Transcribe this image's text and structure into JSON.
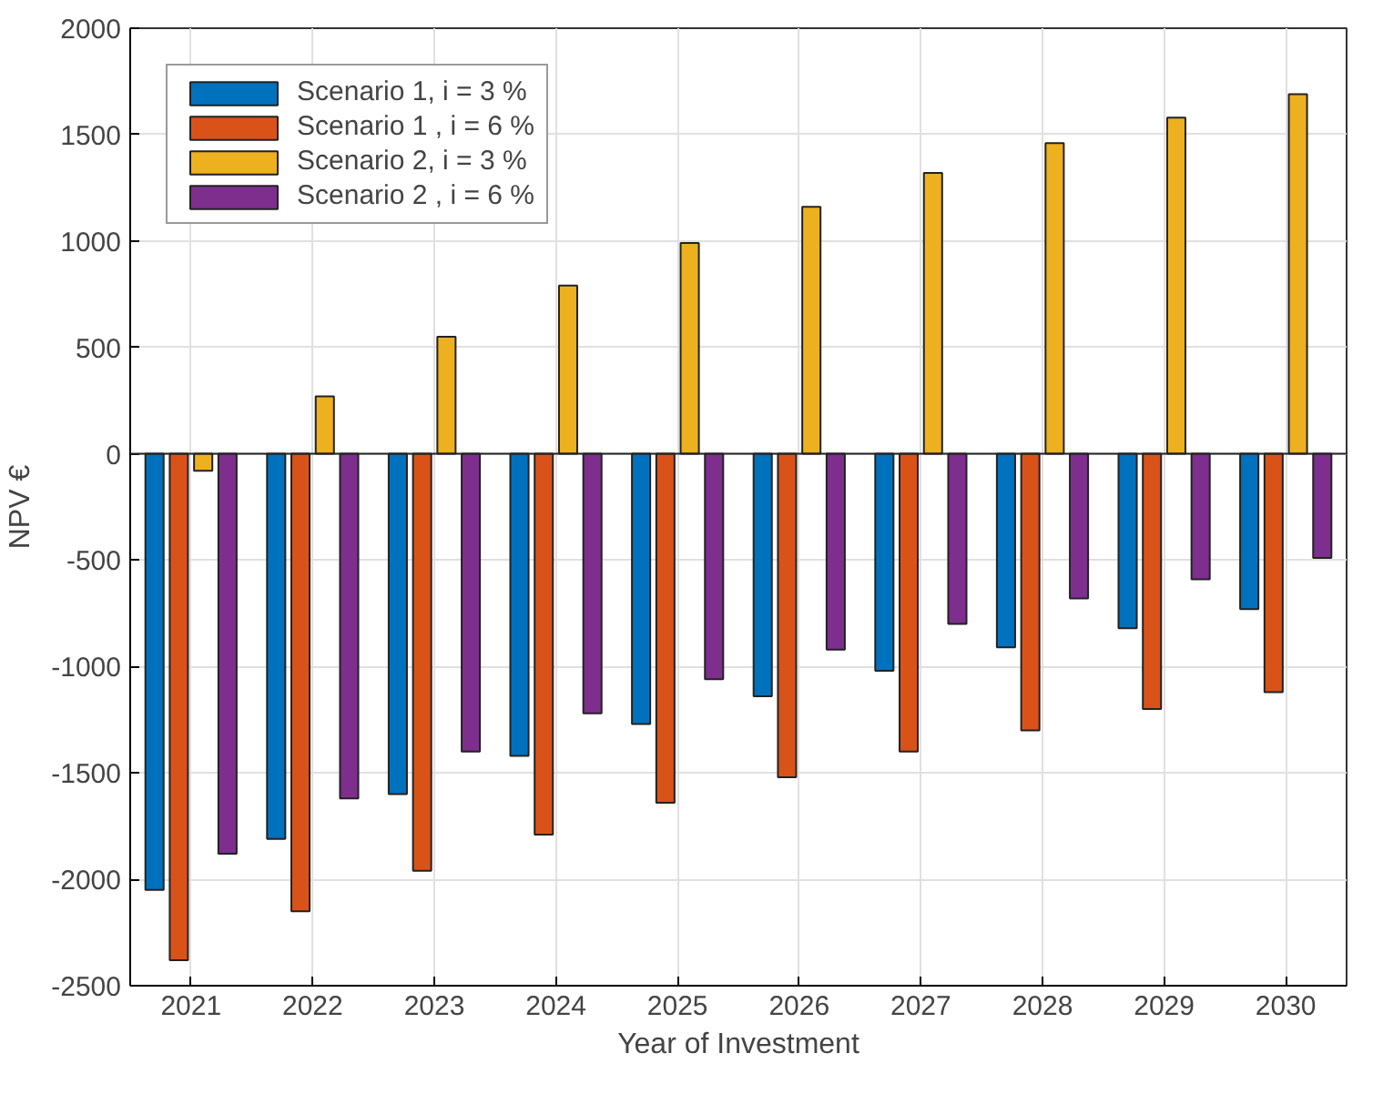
{
  "chart_data": {
    "type": "bar",
    "xlabel": "Year of Investment",
    "ylabel": "NPV €",
    "categories": [
      "2021",
      "2022",
      "2023",
      "2024",
      "2025",
      "2026",
      "2027",
      "2028",
      "2029",
      "2030"
    ],
    "series": [
      {
        "name": "Scenario 1, i = 3 %",
        "color": "#0072bd",
        "values": [
          -2050,
          -1810,
          -1600,
          -1420,
          -1270,
          -1140,
          -1020,
          -910,
          -820,
          -730
        ]
      },
      {
        "name": "Scenario 1 , i = 6 %",
        "color": "#d95319",
        "values": [
          -2380,
          -2150,
          -1960,
          -1790,
          -1640,
          -1520,
          -1400,
          -1300,
          -1200,
          -1120
        ]
      },
      {
        "name": "Scenario 2, i = 3 %",
        "color": "#edb120",
        "values": [
          -80,
          270,
          550,
          790,
          990,
          1160,
          1320,
          1460,
          1580,
          1690
        ]
      },
      {
        "name": "Scenario 2 , i = 6 %",
        "color": "#7e2f8e",
        "values": [
          -1880,
          -1620,
          -1400,
          -1220,
          -1060,
          -920,
          -800,
          -680,
          -590,
          -490
        ]
      }
    ],
    "ylim": [
      -2500,
      2000
    ],
    "yticks": [
      -2500,
      -2000,
      -1500,
      -1000,
      -500,
      0,
      500,
      1000,
      1500,
      2000
    ],
    "grid": true,
    "legend": "top left"
  }
}
